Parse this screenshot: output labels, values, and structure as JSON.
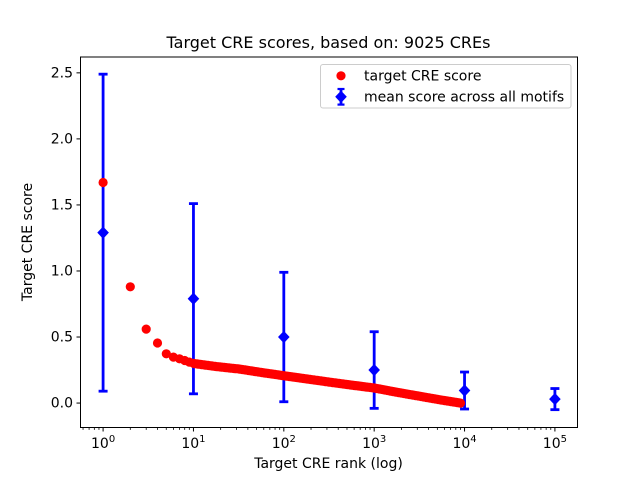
{
  "figure": {
    "kind": "matplotlib-scatter-errorbar-plot"
  },
  "chart_data": {
    "type": "scatter",
    "title": "Target CRE scores, based on: 9025 CREs",
    "xlabel": "Target CRE rank (log)",
    "ylabel": "Target CRE score",
    "x_scale": "log",
    "grid": false,
    "n_cres": 9025,
    "xlim_log10": [
      -0.25,
      5.25
    ],
    "ylim": [
      -0.185,
      2.62
    ],
    "x_tick_base": "10",
    "x_tick_exponents": [
      0,
      1,
      2,
      3,
      4,
      5
    ],
    "y_ticks": [
      0.0,
      0.5,
      1.0,
      1.5,
      2.0,
      2.5
    ],
    "legend": {
      "position": "upper right",
      "entries": [
        "target CRE score",
        "mean score across all motifs"
      ]
    },
    "series": [
      {
        "name": "target CRE score",
        "marker": "circle",
        "color": "#ff0000",
        "n_points": 9025,
        "anchor_points_rank_score": [
          [
            1,
            1.67
          ],
          [
            2,
            0.88
          ],
          [
            3,
            0.56
          ],
          [
            4,
            0.455
          ],
          [
            5,
            0.373
          ],
          [
            6,
            0.348
          ],
          [
            7,
            0.335
          ],
          [
            8,
            0.322
          ],
          [
            9,
            0.31
          ],
          [
            10,
            0.3
          ],
          [
            18,
            0.276
          ],
          [
            32,
            0.258
          ],
          [
            56,
            0.232
          ],
          [
            100,
            0.207
          ],
          [
            178,
            0.183
          ],
          [
            316,
            0.159
          ],
          [
            562,
            0.136
          ],
          [
            1000,
            0.114
          ],
          [
            1778,
            0.082
          ],
          [
            3162,
            0.052
          ],
          [
            5623,
            0.022
          ],
          [
            9025,
            0.0
          ]
        ]
      },
      {
        "name": "mean score across all motifs",
        "marker": "diamond",
        "color": "#0000ff",
        "x": [
          1,
          10,
          100,
          1000,
          10000,
          100000
        ],
        "y": [
          1.29,
          0.79,
          0.5,
          0.25,
          0.095,
          0.03
        ],
        "yerr": [
          1.2,
          0.72,
          0.49,
          0.29,
          0.14,
          0.08
        ]
      }
    ]
  }
}
